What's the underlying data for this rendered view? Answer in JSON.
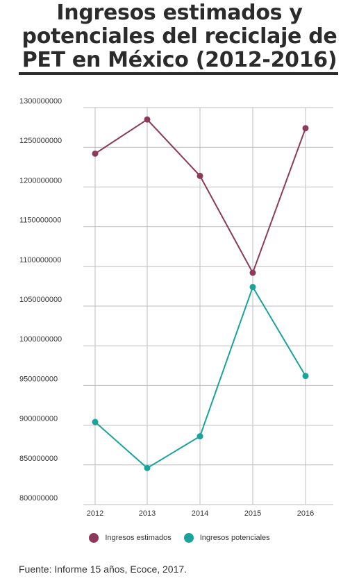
{
  "title": "Ingresos estimados y potenciales del reciclaje de PET en México (2012-2016)",
  "source": "Fuente: Informe 15 años, Ecoce, 2017.",
  "chart_data": {
    "type": "line",
    "title": "Ingresos estimados y potenciales del reciclaje de PET en México (2012-2016)",
    "xlabel": "",
    "ylabel": "",
    "x": [
      "2012",
      "2013",
      "2014",
      "2015",
      "2016"
    ],
    "ylim": [
      800000000,
      1300000000
    ],
    "yticks": [
      "800000000",
      "850000000",
      "900000000",
      "950000000",
      "1000000000",
      "1050000000",
      "1100000000",
      "1150000000",
      "1200000000",
      "1250000000",
      "1300000000"
    ],
    "grid": true,
    "legend_position": "bottom",
    "series": [
      {
        "name": "Ingresos estimados",
        "color": "#8b3a5a",
        "values": [
          1242000000,
          1285000000,
          1214000000,
          1092000000,
          1274000000
        ]
      },
      {
        "name": "Ingresos potenciales",
        "color": "#1aa39a",
        "values": [
          904000000,
          846000000,
          886000000,
          1074000000,
          962000000
        ]
      }
    ]
  }
}
